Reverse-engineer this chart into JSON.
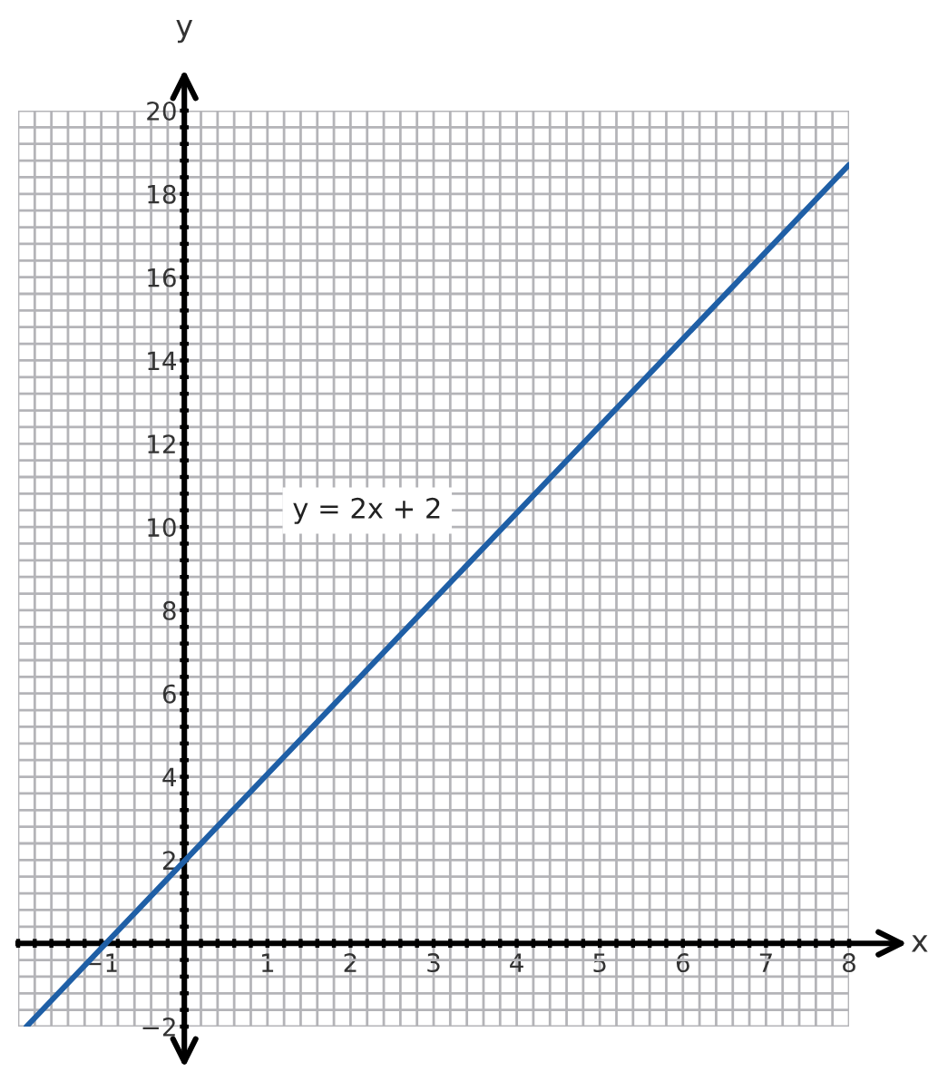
{
  "chart_data": {
    "type": "line",
    "xlabel": "x",
    "ylabel": "y",
    "annotations": [
      "y = 2x + 2"
    ],
    "series": [
      {
        "color": "#1f5fa6",
        "x": [
          -1.9,
          8
        ],
        "values": [
          -2,
          18.7
        ]
      }
    ],
    "xlim": [
      -2,
      8
    ],
    "ylim": [
      -2,
      20
    ],
    "xticks": [
      {
        "value": -2,
        "label": null
      },
      {
        "value": -1.8,
        "label": null
      },
      {
        "value": -1.6,
        "label": null
      },
      {
        "value": -1.4,
        "label": null
      },
      {
        "value": -1.2,
        "label": null
      },
      {
        "value": -1,
        "label": "−1"
      },
      {
        "value": -0.8,
        "label": null
      },
      {
        "value": -0.6,
        "label": null
      },
      {
        "value": -0.4,
        "label": null
      },
      {
        "value": -0.2,
        "label": null
      },
      {
        "value": 0,
        "label": null
      },
      {
        "value": 0.2,
        "label": null
      },
      {
        "value": 0.4,
        "label": null
      },
      {
        "value": 0.6,
        "label": null
      },
      {
        "value": 0.8,
        "label": null
      },
      1,
      {
        "value": 1.2,
        "label": null
      },
      {
        "value": 1.4,
        "label": null
      },
      {
        "value": 1.6,
        "label": null
      },
      {
        "value": 1.8,
        "label": null
      },
      2,
      {
        "value": 2.2,
        "label": null
      },
      {
        "value": 2.4,
        "label": null
      },
      {
        "value": 2.6,
        "label": null
      },
      {
        "value": 2.8,
        "label": null
      },
      3,
      {
        "value": 3.2,
        "label": null
      },
      {
        "value": 3.4,
        "label": null
      },
      {
        "value": 3.6,
        "label": null
      },
      {
        "value": 3.8,
        "label": null
      },
      4,
      {
        "value": 4.2,
        "label": null
      },
      {
        "value": 4.4,
        "label": null
      },
      {
        "value": 4.6,
        "label": null
      },
      {
        "value": 4.8,
        "label": null
      },
      5,
      {
        "value": 5.2,
        "label": null
      },
      {
        "value": 5.4,
        "label": null
      },
      {
        "value": 5.6,
        "label": null
      },
      {
        "value": 5.8,
        "label": null
      },
      6,
      {
        "value": 6.2,
        "label": null
      },
      {
        "value": 6.4,
        "label": null
      },
      {
        "value": 6.6,
        "label": null
      },
      {
        "value": 6.8,
        "label": null
      },
      7,
      {
        "value": 7.2,
        "label": null
      },
      {
        "value": 7.4,
        "label": null
      },
      {
        "value": 7.6,
        "label": null
      },
      {
        "value": 7.8,
        "label": null
      },
      8
    ],
    "yticks": [
      {
        "value": -2,
        "label": "−2"
      },
      {
        "value": -1.6,
        "label": null
      },
      {
        "value": -1.2,
        "label": null
      },
      {
        "value": -0.8,
        "label": null
      },
      {
        "value": -0.4,
        "label": null
      },
      {
        "value": 0,
        "label": null
      },
      {
        "value": 0.4,
        "label": null
      },
      {
        "value": 0.8,
        "label": null
      },
      {
        "value": 1.2,
        "label": null
      },
      {
        "value": 1.6,
        "label": null
      },
      2,
      {
        "value": 2.4,
        "label": null
      },
      {
        "value": 2.8,
        "label": null
      },
      {
        "value": 3.2,
        "label": null
      },
      {
        "value": 3.6,
        "label": null
      },
      4,
      {
        "value": 4.4,
        "label": null
      },
      {
        "value": 4.8,
        "label": null
      },
      {
        "value": 5.2,
        "label": null
      },
      {
        "value": 5.6,
        "label": null
      },
      6,
      {
        "value": 6.4,
        "label": null
      },
      {
        "value": 6.8,
        "label": null
      },
      {
        "value": 7.2,
        "label": null
      },
      {
        "value": 7.6,
        "label": null
      },
      8,
      {
        "value": 8.4,
        "label": null
      },
      {
        "value": 8.8,
        "label": null
      },
      {
        "value": 9.2,
        "label": null
      },
      {
        "value": 9.6,
        "label": null
      },
      10,
      {
        "value": 10.4,
        "label": null
      },
      {
        "value": 10.8,
        "label": null
      },
      {
        "value": 11.2,
        "label": null
      },
      {
        "value": 11.6,
        "label": null
      },
      12,
      {
        "value": 12.4,
        "label": null
      },
      {
        "value": 12.8,
        "label": null
      },
      {
        "value": 13.2,
        "label": null
      },
      {
        "value": 13.6,
        "label": null
      },
      14,
      {
        "value": 14.4,
        "label": null
      },
      {
        "value": 14.8,
        "label": null
      },
      {
        "value": 15.2,
        "label": null
      },
      {
        "value": 15.6,
        "label": null
      },
      16,
      {
        "value": 16.4,
        "label": null
      },
      {
        "value": 16.8,
        "label": null
      },
      {
        "value": 17.2,
        "label": null
      },
      {
        "value": 17.6,
        "label": null
      },
      18,
      {
        "value": 18.4,
        "label": null
      },
      {
        "value": 18.8,
        "label": null
      },
      {
        "value": 19.2,
        "label": null
      },
      {
        "value": 19.6,
        "label": null
      },
      20
    ],
    "grid": true,
    "marker": "none",
    "line_style": "solid"
  }
}
